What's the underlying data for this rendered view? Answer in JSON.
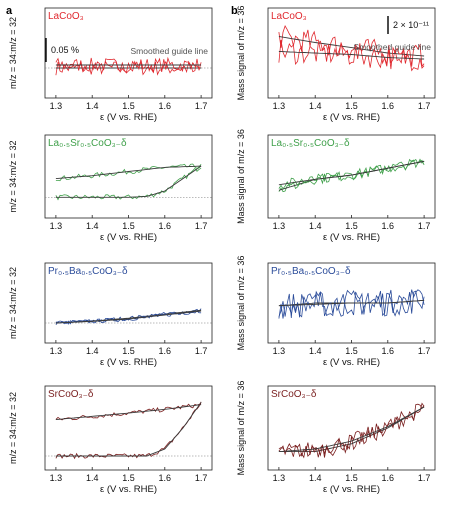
{
  "figure": {
    "panel_a_label": "a",
    "panel_b_label": "b",
    "x_axis_label": "ε (V vs. RHE)",
    "y_label_a": "m/z = 34:m/z = 32",
    "y_label_b": "Mass signal of m/z = 36",
    "scale_bar_a": "0.05 %",
    "scale_bar_b": "2 × 10⁻¹¹",
    "guide_line_label": "Smoothed guide line"
  },
  "colors": {
    "LaCoO3": "#e0282e",
    "LSCO": "#3fa04a",
    "PBCO": "#2b4c9a",
    "SrCoO3": "#7a1f1f",
    "guide": "#555555"
  },
  "chart_data": [
    {
      "type": "line",
      "panel": "a",
      "material": "LaCoO3",
      "title": "LaCoO₃",
      "xlabel": "ε (V vs. RHE)",
      "ylabel": "m/z = 34:m/z = 32",
      "x_ticks": [
        1.3,
        1.4,
        1.5,
        1.6,
        1.7
      ],
      "xlim": [
        1.27,
        1.73
      ],
      "ylim": [
        -0.5,
        1.0
      ],
      "sweep_up": [
        [
          1.3,
          0.0
        ],
        [
          1.4,
          0.0
        ],
        [
          1.5,
          0.0
        ],
        [
          1.6,
          0.0
        ],
        [
          1.7,
          0.0
        ]
      ],
      "sweep_down": [
        [
          1.7,
          0.05
        ],
        [
          1.6,
          0.05
        ],
        [
          1.5,
          0.05
        ],
        [
          1.4,
          0.05
        ],
        [
          1.3,
          0.05
        ]
      ],
      "noise": 0.12,
      "baseline": 0.0
    },
    {
      "type": "line",
      "panel": "a",
      "material": "LSCO",
      "title": "La₀.₅Sr₀.₅CoO₃₋δ",
      "xlabel": "ε (V vs. RHE)",
      "ylabel": "m/z = 34:m/z = 32",
      "x_ticks": [
        1.3,
        1.4,
        1.5,
        1.6,
        1.7
      ],
      "xlim": [
        1.27,
        1.73
      ],
      "ylim": [
        -0.5,
        1.5
      ],
      "sweep_up": [
        [
          1.3,
          0.0
        ],
        [
          1.4,
          0.0
        ],
        [
          1.5,
          0.0
        ],
        [
          1.55,
          0.02
        ],
        [
          1.6,
          0.15
        ],
        [
          1.65,
          0.45
        ],
        [
          1.7,
          0.75
        ]
      ],
      "sweep_down": [
        [
          1.7,
          0.75
        ],
        [
          1.6,
          0.72
        ],
        [
          1.5,
          0.62
        ],
        [
          1.4,
          0.52
        ],
        [
          1.3,
          0.45
        ]
      ],
      "noise": 0.06,
      "baseline": 0.0
    },
    {
      "type": "line",
      "panel": "a",
      "material": "PBCO",
      "title": "Pr₀.₅Ba₀.₅CoO₃₋δ",
      "xlabel": "ε (V vs. RHE)",
      "ylabel": "m/z = 34:m/z = 32",
      "x_ticks": [
        1.3,
        1.4,
        1.5,
        1.6,
        1.7
      ],
      "xlim": [
        1.27,
        1.73
      ],
      "ylim": [
        -0.5,
        1.5
      ],
      "sweep_up": [
        [
          1.3,
          0.0
        ],
        [
          1.4,
          0.05
        ],
        [
          1.5,
          0.12
        ],
        [
          1.6,
          0.22
        ],
        [
          1.7,
          0.32
        ]
      ],
      "sweep_down": [
        [
          1.7,
          0.3
        ],
        [
          1.6,
          0.2
        ],
        [
          1.5,
          0.1
        ],
        [
          1.4,
          0.04
        ],
        [
          1.3,
          0.0
        ]
      ],
      "noise": 0.05,
      "baseline": 0.0
    },
    {
      "type": "line",
      "panel": "a",
      "material": "SrCoO3",
      "title": "SrCoO₃₋δ",
      "xlabel": "ε (V vs. RHE)",
      "ylabel": "m/z = 34:m/z = 32",
      "x_ticks": [
        1.3,
        1.4,
        1.5,
        1.6,
        1.7
      ],
      "xlim": [
        1.27,
        1.73
      ],
      "ylim": [
        -0.3,
        1.5
      ],
      "sweep_up": [
        [
          1.3,
          0.0
        ],
        [
          1.45,
          0.0
        ],
        [
          1.55,
          0.0
        ],
        [
          1.6,
          0.15
        ],
        [
          1.65,
          0.6
        ],
        [
          1.7,
          1.15
        ]
      ],
      "sweep_down": [
        [
          1.7,
          1.1
        ],
        [
          1.6,
          1.0
        ],
        [
          1.5,
          0.92
        ],
        [
          1.4,
          0.85
        ],
        [
          1.3,
          0.78
        ]
      ],
      "noise": 0.05,
      "baseline": 0.0
    },
    {
      "type": "line",
      "panel": "b",
      "material": "LaCoO3",
      "title": "LaCoO₃",
      "xlabel": "ε (V vs. RHE)",
      "ylabel": "Mass signal of m/z = 36",
      "x_ticks": [
        1.3,
        1.4,
        1.5,
        1.6,
        1.7
      ],
      "xlim": [
        1.27,
        1.73
      ],
      "ylim": [
        -1.5,
        1.5
      ],
      "sweep_up": [
        [
          1.3,
          0.55
        ],
        [
          1.4,
          0.35
        ],
        [
          1.5,
          0.18
        ],
        [
          1.6,
          0.0
        ],
        [
          1.7,
          -0.1
        ]
      ],
      "sweep_down": [
        [
          1.7,
          -0.2
        ],
        [
          1.6,
          -0.15
        ],
        [
          1.5,
          -0.05
        ],
        [
          1.4,
          0.0
        ],
        [
          1.3,
          0.05
        ]
      ],
      "noise": 0.4
    },
    {
      "type": "line",
      "panel": "b",
      "material": "LSCO",
      "title": "La₀.₅Sr₀.₅CoO₃₋δ",
      "xlabel": "ε (V vs. RHE)",
      "ylabel": "Mass signal of m/z = 36",
      "x_ticks": [
        1.3,
        1.4,
        1.5,
        1.6,
        1.7
      ],
      "xlim": [
        1.27,
        1.73
      ],
      "ylim": [
        -1.5,
        1.5
      ],
      "sweep_up": [
        [
          1.3,
          -0.5
        ],
        [
          1.4,
          -0.1
        ],
        [
          1.5,
          0.05
        ],
        [
          1.6,
          0.3
        ],
        [
          1.7,
          0.55
        ]
      ],
      "sweep_down": [
        [
          1.7,
          0.55
        ],
        [
          1.6,
          0.3
        ],
        [
          1.5,
          0.05
        ],
        [
          1.4,
          -0.1
        ],
        [
          1.3,
          -0.3
        ]
      ],
      "noise": 0.18
    },
    {
      "type": "line",
      "panel": "b",
      "material": "PBCO",
      "title": "Pr₀.₅Ba₀.₅CoO₃₋δ",
      "xlabel": "ε (V vs. RHE)",
      "ylabel": "Mass signal of m/z = 36",
      "x_ticks": [
        1.3,
        1.4,
        1.5,
        1.6,
        1.7
      ],
      "xlim": [
        1.27,
        1.73
      ],
      "ylim": [
        -1.5,
        1.5
      ],
      "sweep_up": [
        [
          1.3,
          -0.1
        ],
        [
          1.4,
          0.0
        ],
        [
          1.5,
          0.0
        ],
        [
          1.6,
          0.0
        ],
        [
          1.7,
          0.1
        ]
      ],
      "sweep_down": [
        [
          1.7,
          0.1
        ],
        [
          1.6,
          0.0
        ],
        [
          1.5,
          0.0
        ],
        [
          1.4,
          -0.05
        ],
        [
          1.3,
          -0.1
        ]
      ],
      "noise": 0.5
    },
    {
      "type": "line",
      "panel": "b",
      "material": "SrCoO3",
      "title": "SrCoO₃₋δ",
      "xlabel": "ε (V vs. RHE)",
      "ylabel": "Mass signal of m/z = 36",
      "x_ticks": [
        1.3,
        1.4,
        1.5,
        1.6,
        1.7
      ],
      "xlim": [
        1.27,
        1.73
      ],
      "ylim": [
        -1.5,
        1.7
      ],
      "sweep_up": [
        [
          1.3,
          -0.8
        ],
        [
          1.4,
          -0.8
        ],
        [
          1.5,
          -0.5
        ],
        [
          1.6,
          0.1
        ],
        [
          1.7,
          0.9
        ]
      ],
      "sweep_down": [
        [
          1.7,
          0.9
        ],
        [
          1.6,
          0.15
        ],
        [
          1.5,
          -0.4
        ],
        [
          1.4,
          -0.7
        ],
        [
          1.3,
          -0.8
        ]
      ],
      "noise": 0.3
    }
  ]
}
